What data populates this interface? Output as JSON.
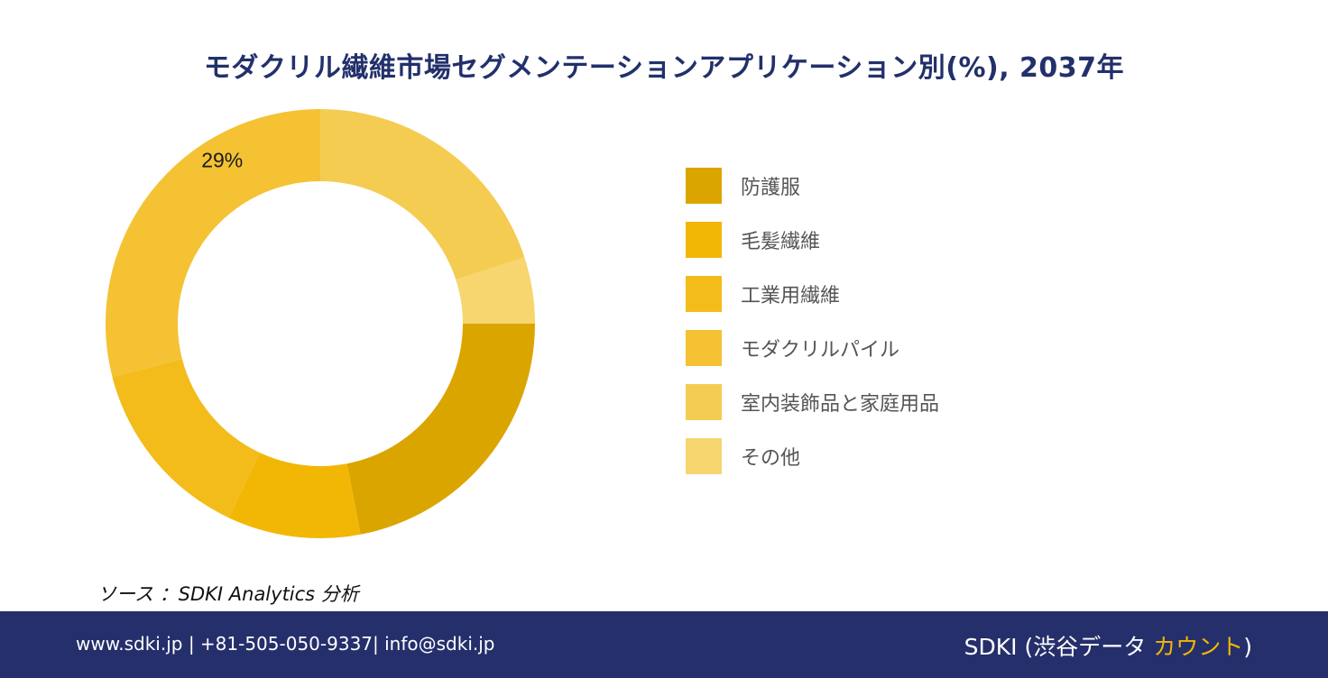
{
  "title": "モダクリル繊維市場セグメンテーションアプリケーション別(%), 2037年",
  "chart_data": {
    "type": "pie",
    "hole": "donut",
    "categories": [
      "防護服",
      "毛髪繊維",
      "工業用繊維",
      "モダクリルパイル",
      "室内装飾品と家庭用品",
      "その他"
    ],
    "values": [
      22,
      10,
      14,
      29,
      20,
      5
    ],
    "colors": [
      "#dba500",
      "#f2b705",
      "#f3bc1b",
      "#f4c233",
      "#f5cc52",
      "#f7d56f"
    ],
    "data_labels": [
      {
        "category": "モダクリルパイル",
        "text": "29%"
      }
    ],
    "legend_position": "right"
  },
  "legend": {
    "items": [
      {
        "label": "防護服",
        "color": "#dba500"
      },
      {
        "label": "毛髪繊維",
        "color": "#f2b705"
      },
      {
        "label": "工業用繊維",
        "color": "#f3bc1b"
      },
      {
        "label": "モダクリルパイル",
        "color": "#f4c233"
      },
      {
        "label": "室内装飾品と家庭用品",
        "color": "#f5cc52"
      },
      {
        "label": "その他",
        "color": "#f7d56f"
      }
    ]
  },
  "source": "ソース ：SDKI Analytics 分析",
  "footer": {
    "contact": "www.sdki.jp | +81-505-050-9337| info@sdki.jp",
    "brand_prefix": "SDKI (渋谷データ ",
    "brand_accent": "カウント",
    "brand_suffix": ")",
    "background": "#252f6b",
    "accent_color": "#f2b705"
  }
}
